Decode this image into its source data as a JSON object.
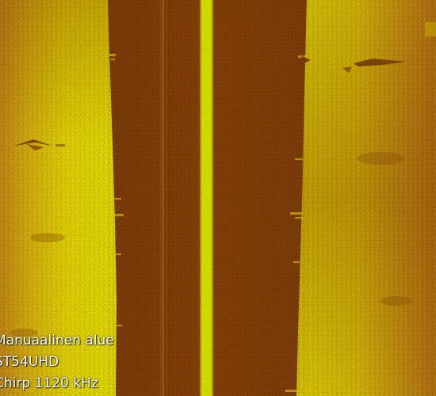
{
  "sonar_view": {
    "mode": "side-scan sonar",
    "palette": {
      "sediment_bright": "#e0df00",
      "sediment_mid": "#c89a10",
      "sediment_dark": "#a35f0a",
      "water_column": "#7a300a",
      "nadir_line": "#dfe800"
    },
    "info": {
      "area_label": "Manuaalinen alue",
      "device_label": "ST54UHD",
      "frequency_label": "Chirp 1120 kHz"
    }
  }
}
